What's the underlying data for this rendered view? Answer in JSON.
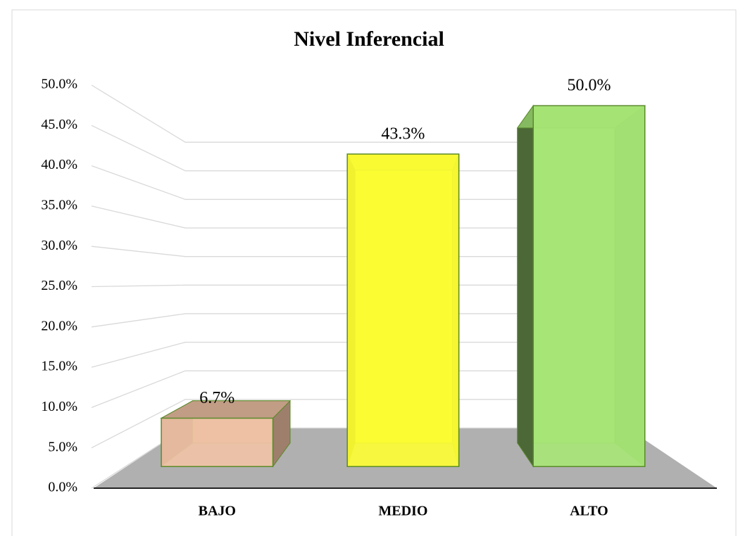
{
  "chart_data": {
    "type": "bar3d",
    "title": "Nivel Inferencial",
    "categories": [
      "BAJO",
      "MEDIO",
      "ALTO"
    ],
    "values": [
      6.7,
      43.3,
      50.0
    ],
    "value_labels": [
      "6.7%",
      "43.3%",
      "50.0%"
    ],
    "colors": [
      "#f2c4a6",
      "#ffff33",
      "#a8e878"
    ],
    "ylim": [
      0,
      50
    ],
    "yticks": [
      {
        "value": 0,
        "label": "0.0%"
      },
      {
        "value": 5,
        "label": "5.0%"
      },
      {
        "value": 10,
        "label": "10.0%"
      },
      {
        "value": 15,
        "label": "15.0%"
      },
      {
        "value": 20,
        "label": "20.0%"
      },
      {
        "value": 25,
        "label": "25.0%"
      },
      {
        "value": 30,
        "label": "30.0%"
      },
      {
        "value": 35,
        "label": "35.0%"
      },
      {
        "value": 40,
        "label": "40.0%"
      },
      {
        "value": 45,
        "label": "45.0%"
      },
      {
        "value": 50,
        "label": "50.0%"
      }
    ],
    "grid": true
  }
}
